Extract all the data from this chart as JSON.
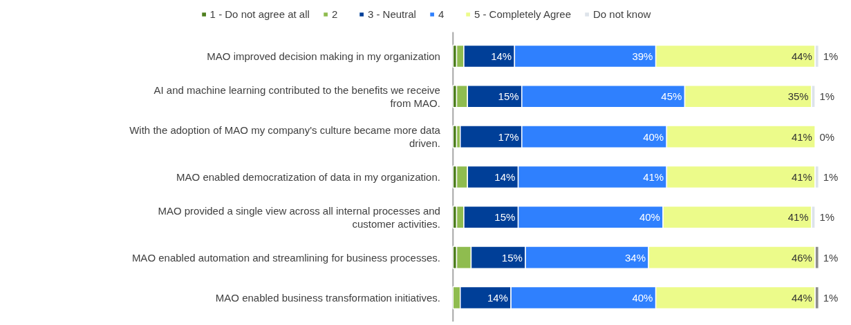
{
  "chart_data": {
    "type": "bar",
    "orientation": "horizontal",
    "stacked": true,
    "legend": "top",
    "grid": false,
    "categories": [
      "MAO improved decision making in my organization",
      "AI and machine learning contributed to the benefits we receive from MAO.",
      "With the adoption of MAO my company's culture became more data driven.",
      "MAO enabled democratization of data in my organization.",
      "MAO provided a single view across all internal processes and customer activities.",
      "MAO enabled automation and streamlining for business processes.",
      "MAO enabled business transformation initiatives."
    ],
    "series": [
      {
        "name": "1 - Do not agree at all",
        "color": "#4e7f1e",
        "values": [
          1,
          1,
          1,
          1,
          1,
          1,
          0
        ]
      },
      {
        "name": "2",
        "color": "#8fbc4f",
        "values": [
          2,
          3,
          1,
          3,
          2,
          4,
          2
        ]
      },
      {
        "name": "3 - Neutral",
        "color": "#003f98",
        "values": [
          14,
          15,
          17,
          14,
          15,
          15,
          14
        ],
        "value_labels": [
          "14%",
          "15%",
          "17%",
          "14%",
          "15%",
          "15%",
          "14%"
        ]
      },
      {
        "name": "4",
        "color": "#2f80fe",
        "values": [
          39,
          45,
          40,
          41,
          40,
          34,
          40
        ],
        "value_labels": [
          "39%",
          "45%",
          "40%",
          "41%",
          "40%",
          "34%",
          "40%"
        ]
      },
      {
        "name": "5 - Completely Agree",
        "color": "#ecfb8a",
        "values": [
          44,
          35,
          41,
          41,
          41,
          46,
          44
        ],
        "value_labels": [
          "44%",
          "35%",
          "41%",
          "41%",
          "41%",
          "46%",
          "44%"
        ]
      },
      {
        "name": "Do not know",
        "color": "#dde3ea",
        "colors": [
          "#dde3ea",
          "#dde3ea",
          "#dde3ea",
          "#dde3ea",
          "#dde3ea",
          "#8c8c8c",
          "#8c8c8c"
        ],
        "values": [
          1,
          1,
          0,
          1,
          1,
          1,
          1
        ],
        "value_labels": [
          "1%",
          "1%",
          "0%",
          "1%",
          "1%",
          "1%",
          "1%"
        ]
      }
    ]
  }
}
